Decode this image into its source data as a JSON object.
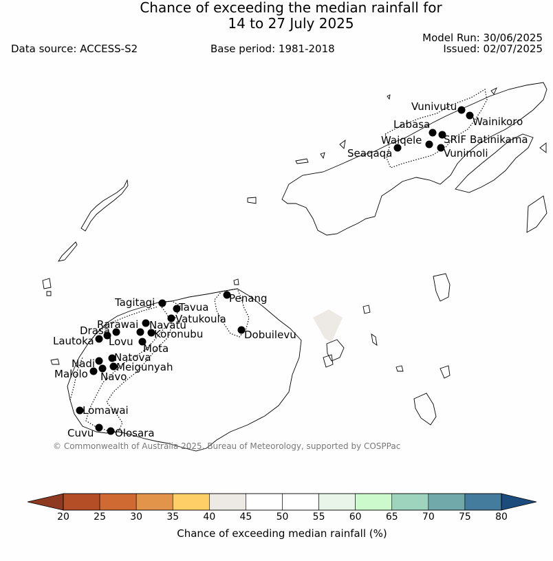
{
  "header": {
    "title_line1": "Chance of exceeding the median rainfall for",
    "title_line2": "14 to 27 July 2025",
    "model_run": "Model Run: 30/06/2025",
    "issued": "Issued: 02/07/2025",
    "data_source": "Data source: ACCESS-S2",
    "base_period": "Base period: 1981-2018"
  },
  "map": {
    "credit": "© Commonwealth of Australia 2025, Bureau of Meteorology, supported by COSPPac",
    "shaded_region_color": "#ede9e5",
    "stations": [
      {
        "name": "Vunivutu"
      },
      {
        "name": "Wainikoro"
      },
      {
        "name": "Labasa"
      },
      {
        "name": "SRIF"
      },
      {
        "name": "Batinikama"
      },
      {
        "name": "Waiqele"
      },
      {
        "name": "Seaqaqa"
      },
      {
        "name": "Vunimoli"
      },
      {
        "name": "Tagitagi"
      },
      {
        "name": "Tavua"
      },
      {
        "name": "Penang"
      },
      {
        "name": "Vatukoula"
      },
      {
        "name": "Rarawai"
      },
      {
        "name": "Navatu"
      },
      {
        "name": "Drasa"
      },
      {
        "name": "Koronubu"
      },
      {
        "name": "Dobuilevu"
      },
      {
        "name": "Lautoka"
      },
      {
        "name": "Lovu"
      },
      {
        "name": "Mota"
      },
      {
        "name": "Natova"
      },
      {
        "name": "Nadi"
      },
      {
        "name": "Meigunyah"
      },
      {
        "name": "Malolo"
      },
      {
        "name": "Navo"
      },
      {
        "name": "Lomawai"
      },
      {
        "name": "Cuvu"
      },
      {
        "name": "Olosara"
      }
    ]
  },
  "colorbar": {
    "label": "Chance of exceeding median rainfall (%)",
    "ticks": [
      "20",
      "25",
      "30",
      "35",
      "40",
      "45",
      "50",
      "55",
      "60",
      "65",
      "70",
      "75",
      "80"
    ],
    "under_color": "#8e3a20",
    "over_color": "#1c4c7c",
    "colors": [
      "#b34e26",
      "#cf6a33",
      "#e2944b",
      "#fdcf66",
      "#ede9e5",
      "#ffffff",
      "#ffffff",
      "#eaf5ea",
      "#cdfacd",
      "#9ed3bd",
      "#71a8aa",
      "#437c9c"
    ]
  }
}
